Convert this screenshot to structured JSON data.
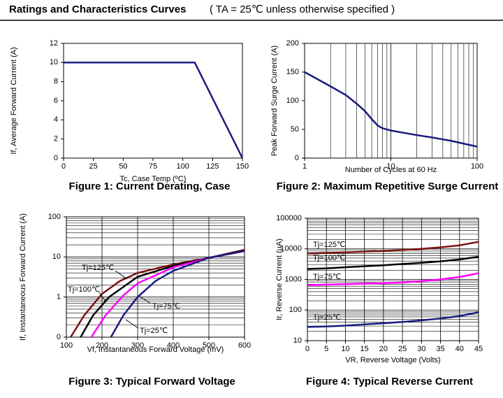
{
  "header": {
    "title": "Ratings and Characteristics Curves",
    "conditions": "( TA = 25℃  unless otherwise specified )"
  },
  "chart_data": [
    {
      "type": "line",
      "caption": "Figure 1: Current Derating, Case",
      "xlabel": "Tc, Case Temp (ºC)",
      "ylabel": "If, Average Forward Current (A)",
      "x": [
        0,
        110,
        150
      ],
      "series": [
        {
          "color": "#1a1a80",
          "values": [
            10,
            10,
            0
          ]
        }
      ],
      "xlim": [
        0,
        150
      ],
      "xticks": [
        0,
        25,
        50,
        75,
        100,
        125,
        150
      ],
      "ylim": [
        0,
        12
      ],
      "yticks": [
        0,
        2,
        4,
        6,
        8,
        10,
        12
      ],
      "grid": false
    },
    {
      "type": "line",
      "caption": "Figure 2: Maximum Repetitive Surge Current",
      "xlabel": "Number of Cycles at 60 Hz",
      "ylabel": "Peak Forward Surge Current (A)",
      "x": [
        1,
        2,
        3,
        4,
        5,
        6,
        7,
        8,
        10,
        20,
        30,
        50,
        100
      ],
      "series": [
        {
          "color": "#1a1a80",
          "values": [
            150,
            125,
            110,
            95,
            82,
            68,
            57,
            52,
            48,
            40,
            36,
            30,
            20
          ]
        }
      ],
      "xscale": "log",
      "xlim": [
        1,
        100
      ],
      "xticks": [
        1,
        10,
        100
      ],
      "ylim": [
        0,
        200
      ],
      "yticks": [
        0,
        50,
        100,
        150,
        200
      ],
      "grid": "x"
    },
    {
      "type": "line",
      "caption": "Figure 3: Typical Forward Voltage",
      "xlabel": "Vf, Instantaneous Forward  Voltage (mV)",
      "ylabel": "If, Instantaneous Forward Current (A)",
      "series": [
        {
          "name": "Tj=125℃",
          "color": "#7b1010",
          "x": [
            112,
            150,
            200,
            250,
            300,
            400,
            500,
            600
          ],
          "values": [
            0.1,
            0.35,
            1.2,
            2.5,
            4,
            6.5,
            9.5,
            15
          ]
        },
        {
          "name": "Tj=100℃",
          "color": "#000000",
          "x": [
            140,
            175,
            220,
            300,
            400,
            500,
            600
          ],
          "values": [
            0.1,
            0.35,
            1.0,
            3.2,
            6,
            9.5,
            14.5
          ]
        },
        {
          "name": "Tj=75℃",
          "color": "#ff00ff",
          "x": [
            170,
            210,
            260,
            300,
            400,
            500,
            600
          ],
          "values": [
            0.1,
            0.35,
            1.1,
            2.2,
            5.5,
            9.5,
            14
          ]
        },
        {
          "name": "Tj=25℃",
          "color": "#1a1a80",
          "x": [
            225,
            260,
            300,
            350,
            400,
            500,
            600
          ],
          "values": [
            0.1,
            0.35,
            1,
            2.5,
            4.5,
            9.5,
            14
          ]
        }
      ],
      "xlim": [
        100,
        600
      ],
      "xticks": [
        100,
        200,
        300,
        400,
        500,
        600
      ],
      "yscale": "log",
      "ylim": [
        0.1,
        100
      ],
      "yticks": [
        {
          "value": 0.1,
          "label": "0"
        },
        1,
        10,
        100
      ],
      "grid": "both"
    },
    {
      "type": "line",
      "caption": "Figure 4: Typical Reverse Current",
      "xlabel": "VR, Reverse Voltage (Volts)",
      "ylabel": "Ir, Reverse Current (uA)",
      "x": [
        0,
        5,
        10,
        15,
        20,
        25,
        30,
        35,
        40,
        45
      ],
      "series": [
        {
          "name": "Tj=125℃",
          "color": "#7b1010",
          "values": [
            7000,
            7300,
            7700,
            8100,
            8600,
            9200,
            10000,
            11200,
            13000,
            17000
          ]
        },
        {
          "name": "Tj=100℃",
          "color": "#000000",
          "values": [
            2200,
            2300,
            2500,
            2700,
            2900,
            3200,
            3500,
            3900,
            4500,
            5500
          ]
        },
        {
          "name": "Tj=75℃",
          "color": "#ff00ff",
          "values": [
            650,
            680,
            700,
            730,
            760,
            800,
            880,
            1000,
            1200,
            1600
          ]
        },
        {
          "name": "Tj=25℃",
          "color": "#1a1a80",
          "values": [
            28,
            29,
            31,
            34,
            37,
            41,
            46,
            53,
            63,
            85
          ]
        }
      ],
      "xlim": [
        0,
        45
      ],
      "xticks": [
        0,
        5,
        10,
        15,
        20,
        25,
        30,
        35,
        40,
        45
      ],
      "yscale": "log",
      "ylim": [
        10,
        100000
      ],
      "yticks": [
        10,
        100,
        1000,
        10000,
        100000
      ],
      "grid": "both"
    }
  ]
}
